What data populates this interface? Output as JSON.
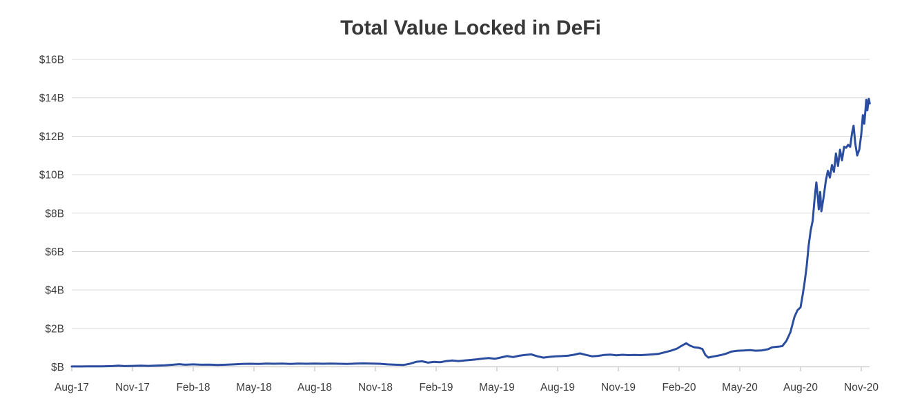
{
  "page": {
    "background": "#ffffff"
  },
  "chart_data": {
    "type": "line",
    "title": "Total Value Locked in DeFi",
    "subtitle": "",
    "legend": "none",
    "grid": "horizontal",
    "x_axis": {
      "label": "",
      "tick_labels": [
        "Aug-17",
        "Nov-17",
        "Feb-18",
        "May-18",
        "Aug-18",
        "Nov-18",
        "Feb-19",
        "May-19",
        "Aug-19",
        "Nov-19",
        "Feb-20",
        "May-20",
        "Aug-20",
        "Nov-20"
      ],
      "tick_interval": "3 months"
    },
    "y_axis": {
      "label": "",
      "tick_labels": [
        "$B",
        "$2B",
        "$4B",
        "$6B",
        "$8B",
        "$10B",
        "$12B",
        "$14B",
        "$16B"
      ],
      "tick_values": [
        0,
        2,
        4,
        6,
        8,
        10,
        12,
        14,
        16
      ],
      "min": 0,
      "max": 16,
      "unit": "USD billions"
    },
    "series": [
      {
        "name": "Total Value Locked",
        "color": "#2b4da0",
        "x_unit": "months since Aug-2017",
        "y_unit": "USD billions",
        "points": [
          [
            0,
            0.02
          ],
          [
            0.5,
            0.02
          ],
          [
            1,
            0.03
          ],
          [
            1.5,
            0.03
          ],
          [
            2,
            0.04
          ],
          [
            2.3,
            0.06
          ],
          [
            2.6,
            0.04
          ],
          [
            3,
            0.05
          ],
          [
            3.4,
            0.06
          ],
          [
            3.8,
            0.05
          ],
          [
            4.2,
            0.07
          ],
          [
            4.6,
            0.08
          ],
          [
            5,
            0.11
          ],
          [
            5.3,
            0.14
          ],
          [
            5.6,
            0.11
          ],
          [
            6,
            0.13
          ],
          [
            6.4,
            0.11
          ],
          [
            6.8,
            0.12
          ],
          [
            7.2,
            0.1
          ],
          [
            7.6,
            0.11
          ],
          [
            8,
            0.13
          ],
          [
            8.4,
            0.15
          ],
          [
            8.8,
            0.16
          ],
          [
            9.2,
            0.15
          ],
          [
            9.6,
            0.17
          ],
          [
            10,
            0.16
          ],
          [
            10.4,
            0.17
          ],
          [
            10.8,
            0.15
          ],
          [
            11.2,
            0.17
          ],
          [
            11.6,
            0.16
          ],
          [
            12,
            0.17
          ],
          [
            12.4,
            0.16
          ],
          [
            12.8,
            0.17
          ],
          [
            13.2,
            0.16
          ],
          [
            13.6,
            0.15
          ],
          [
            14,
            0.17
          ],
          [
            14.4,
            0.18
          ],
          [
            14.8,
            0.17
          ],
          [
            15.2,
            0.16
          ],
          [
            15.6,
            0.13
          ],
          [
            16,
            0.11
          ],
          [
            16.4,
            0.1
          ],
          [
            16.7,
            0.16
          ],
          [
            17,
            0.26
          ],
          [
            17.3,
            0.29
          ],
          [
            17.6,
            0.22
          ],
          [
            17.9,
            0.26
          ],
          [
            18.2,
            0.24
          ],
          [
            18.5,
            0.3
          ],
          [
            18.8,
            0.33
          ],
          [
            19.1,
            0.3
          ],
          [
            19.4,
            0.33
          ],
          [
            19.7,
            0.36
          ],
          [
            20,
            0.39
          ],
          [
            20.3,
            0.43
          ],
          [
            20.6,
            0.46
          ],
          [
            20.9,
            0.42
          ],
          [
            21.2,
            0.49
          ],
          [
            21.5,
            0.56
          ],
          [
            21.8,
            0.51
          ],
          [
            22.1,
            0.58
          ],
          [
            22.4,
            0.62
          ],
          [
            22.7,
            0.65
          ],
          [
            23,
            0.55
          ],
          [
            23.3,
            0.48
          ],
          [
            23.6,
            0.52
          ],
          [
            23.9,
            0.55
          ],
          [
            24.2,
            0.56
          ],
          [
            24.5,
            0.58
          ],
          [
            24.8,
            0.63
          ],
          [
            25.1,
            0.7
          ],
          [
            25.4,
            0.62
          ],
          [
            25.7,
            0.55
          ],
          [
            26,
            0.57
          ],
          [
            26.3,
            0.62
          ],
          [
            26.6,
            0.64
          ],
          [
            26.9,
            0.6
          ],
          [
            27.2,
            0.63
          ],
          [
            27.5,
            0.61
          ],
          [
            27.8,
            0.62
          ],
          [
            28.1,
            0.61
          ],
          [
            28.4,
            0.63
          ],
          [
            28.7,
            0.65
          ],
          [
            29,
            0.68
          ],
          [
            29.3,
            0.76
          ],
          [
            29.6,
            0.84
          ],
          [
            29.9,
            0.95
          ],
          [
            30.1,
            1.08
          ],
          [
            30.35,
            1.23
          ],
          [
            30.55,
            1.1
          ],
          [
            30.75,
            1.02
          ],
          [
            30.95,
            1.0
          ],
          [
            31.15,
            0.93
          ],
          [
            31.3,
            0.62
          ],
          [
            31.45,
            0.48
          ],
          [
            31.6,
            0.52
          ],
          [
            31.75,
            0.55
          ],
          [
            31.9,
            0.58
          ],
          [
            32.1,
            0.62
          ],
          [
            32.3,
            0.68
          ],
          [
            32.6,
            0.8
          ],
          [
            32.9,
            0.84
          ],
          [
            33.2,
            0.85
          ],
          [
            33.5,
            0.87
          ],
          [
            33.8,
            0.84
          ],
          [
            34.1,
            0.86
          ],
          [
            34.4,
            0.92
          ],
          [
            34.6,
            1.02
          ],
          [
            34.9,
            1.05
          ],
          [
            35.1,
            1.08
          ],
          [
            35.3,
            1.35
          ],
          [
            35.5,
            1.8
          ],
          [
            35.7,
            2.6
          ],
          [
            35.85,
            2.95
          ],
          [
            36,
            3.1
          ],
          [
            36.1,
            3.7
          ],
          [
            36.2,
            4.4
          ],
          [
            36.3,
            5.2
          ],
          [
            36.4,
            6.3
          ],
          [
            36.5,
            7.1
          ],
          [
            36.6,
            7.6
          ],
          [
            36.7,
            8.8
          ],
          [
            36.78,
            9.6
          ],
          [
            36.85,
            8.9
          ],
          [
            36.9,
            8.2
          ],
          [
            36.97,
            9.1
          ],
          [
            37.03,
            8.1
          ],
          [
            37.15,
            8.9
          ],
          [
            37.25,
            9.7
          ],
          [
            37.35,
            10.2
          ],
          [
            37.45,
            9.85
          ],
          [
            37.55,
            10.5
          ],
          [
            37.65,
            10.15
          ],
          [
            37.75,
            11.1
          ],
          [
            37.85,
            10.45
          ],
          [
            37.95,
            11.3
          ],
          [
            38.05,
            10.75
          ],
          [
            38.15,
            11.45
          ],
          [
            38.25,
            11.4
          ],
          [
            38.35,
            11.55
          ],
          [
            38.45,
            11.45
          ],
          [
            38.55,
            12.2
          ],
          [
            38.62,
            12.55
          ],
          [
            38.7,
            11.65
          ],
          [
            38.8,
            11.0
          ],
          [
            38.9,
            11.3
          ],
          [
            39,
            12.1
          ],
          [
            39.08,
            13.1
          ],
          [
            39.15,
            12.65
          ],
          [
            39.25,
            13.9
          ],
          [
            39.3,
            13.35
          ],
          [
            39.37,
            13.95
          ],
          [
            39.42,
            13.7
          ]
        ]
      }
    ]
  },
  "colors": {
    "line": "#2b4da0",
    "grid": "#d9d9d9",
    "axis": "#c2c2c2",
    "tick_text": "#3d3d3d",
    "title_text": "#383838",
    "background": "#ffffff"
  }
}
